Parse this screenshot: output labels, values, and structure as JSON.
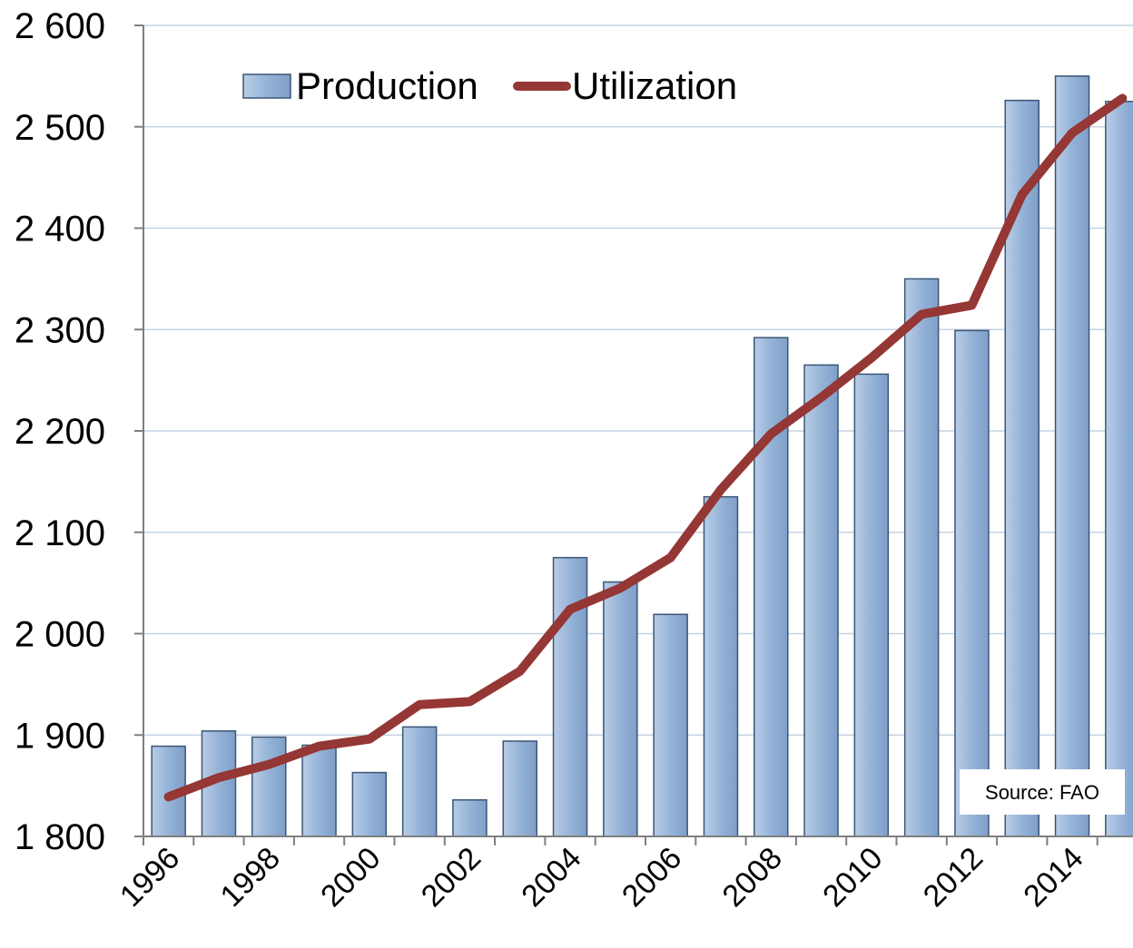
{
  "chart_data": {
    "type": "bar-line",
    "categories": [
      "1996",
      null,
      "1998",
      null,
      "2000",
      null,
      "2002",
      null,
      "2004",
      null,
      "2006",
      null,
      "2008",
      null,
      "2010",
      null,
      "2012",
      null,
      "2014",
      null
    ],
    "series": [
      {
        "name": "Production",
        "type": "bar",
        "color": "#95b3d7",
        "values": [
          1889,
          1904,
          1898,
          1890,
          1863,
          1908,
          1836,
          1894,
          2075,
          2051,
          2019,
          2135,
          2292,
          2265,
          2256,
          2350,
          2299,
          2526,
          2550,
          2525
        ]
      },
      {
        "name": "Utilization",
        "type": "line",
        "color": "#953735",
        "values": [
          1839,
          1858,
          1871,
          1889,
          1896,
          1930,
          1933,
          1963,
          2024,
          2045,
          2075,
          2142,
          2197,
          2233,
          2272,
          2315,
          2324,
          2433,
          2494,
          2528
        ]
      }
    ],
    "ylim": [
      1800,
      2600
    ],
    "yticks": [
      {
        "value": 1800,
        "label": "1 800"
      },
      {
        "value": 1900,
        "label": "1 900"
      },
      {
        "value": 2000,
        "label": "2 000"
      },
      {
        "value": 2100,
        "label": "2 100"
      },
      {
        "value": 2200,
        "label": "2 200"
      },
      {
        "value": 2300,
        "label": "2 300"
      },
      {
        "value": 2400,
        "label": "2 400"
      },
      {
        "value": 2500,
        "label": "2 500"
      },
      {
        "value": 2600,
        "label": "2 600"
      }
    ],
    "grid": true,
    "legend": "top",
    "annotations": [
      "Source: FAO"
    ]
  }
}
